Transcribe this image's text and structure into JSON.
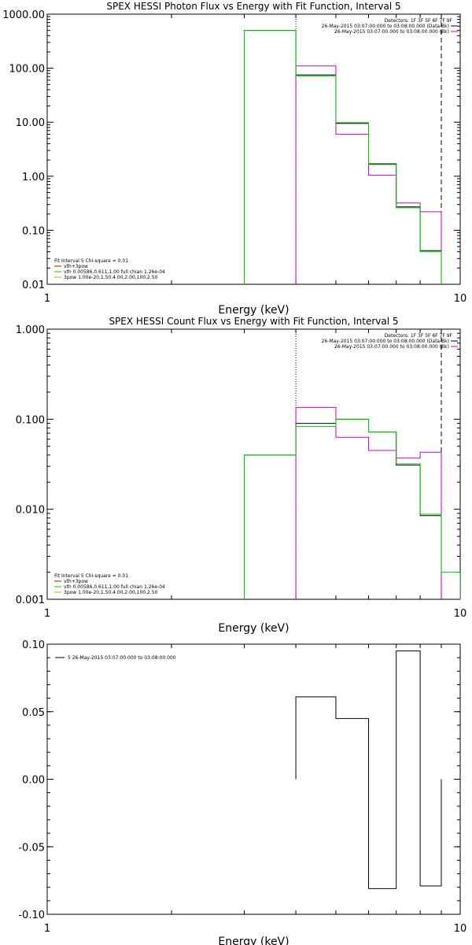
{
  "chart_data": [
    {
      "id": "photon",
      "type": "line",
      "title": "SPEX HESSI Photon Flux vs Energy with Fit Function, Interval 5",
      "xlabel": "Energy (keV)",
      "ylabel": "",
      "xscale": "log",
      "yscale": "log",
      "xlim": [
        1,
        10
      ],
      "ylim": [
        0.01,
        1000
      ],
      "x_ticks": [
        {
          "v": 1,
          "label": "1"
        },
        {
          "v": 10,
          "label": "10"
        }
      ],
      "y_ticks": [
        {
          "v": 0.01,
          "label": "0.01"
        },
        {
          "v": 0.1,
          "label": "0.10"
        },
        {
          "v": 1,
          "label": "1.00"
        },
        {
          "v": 10,
          "label": "10.00"
        },
        {
          "v": 100,
          "label": "100.00"
        },
        {
          "v": 1000,
          "label": "1000.00"
        }
      ],
      "grid": false,
      "vlines": [
        {
          "x": 4,
          "style": "dotted"
        },
        {
          "x": 9,
          "style": "dashed"
        }
      ],
      "legend_tr_header": "Detectors: 1F 3F 5F 6F 7F 9F",
      "legend_tr": [
        {
          "text": "26-May-2015 03:07:00.000 to 03:08:00.000 (Data-Bk)",
          "color": "#000000"
        },
        {
          "text": "26-May-2015 03:07:00.000 to 03:08:00.000 (Bk)",
          "color": "#cc00cc"
        }
      ],
      "legend_bl_header": "Fit Interval 5   Chi-square = 0.01",
      "legend_bl": [
        {
          "text": "vth+3pow",
          "color": "#cc0000"
        },
        {
          "text": "vth 0.00586,0.611,1.00  full chian 1.26e-04",
          "color": "#00cc00"
        },
        {
          "text": "3pow 1.00e-20,1.50,4.00,2.00,100,2.50",
          "color": "#ccaa00"
        }
      ],
      "edges": [
        3,
        4,
        5,
        6,
        7,
        8,
        9
      ],
      "series": [
        {
          "key": "data",
          "color": "#000000",
          "values": [
            500,
            75,
            9.5,
            1.7,
            0.27,
            0.042
          ]
        },
        {
          "key": "bk",
          "color": "#cc00cc",
          "values": [
            null,
            110,
            6,
            1.05,
            0.32,
            0.22
          ]
        },
        {
          "key": "fit",
          "color": "#00cc00",
          "values": [
            500,
            72,
            9.8,
            1.65,
            0.26,
            0.04
          ]
        }
      ]
    },
    {
      "id": "count",
      "type": "line",
      "title": "SPEX HESSI Count Flux vs Energy with Fit Function, Interval 5",
      "xlabel": "Energy (keV)",
      "ylabel": "",
      "xscale": "log",
      "yscale": "log",
      "xlim": [
        1,
        10
      ],
      "ylim": [
        0.001,
        1
      ],
      "x_ticks": [
        {
          "v": 1,
          "label": "1"
        },
        {
          "v": 10,
          "label": "10"
        }
      ],
      "y_ticks": [
        {
          "v": 0.001,
          "label": "0.001"
        },
        {
          "v": 0.01,
          "label": "0.010"
        },
        {
          "v": 0.1,
          "label": "0.100"
        },
        {
          "v": 1,
          "label": "1.000"
        }
      ],
      "grid": false,
      "vlines": [
        {
          "x": 4,
          "style": "dotted"
        },
        {
          "x": 9,
          "style": "dashed"
        }
      ],
      "legend_tr_header": "Detectors: 1F 3F 5F 6F 7F 9F",
      "legend_tr": [
        {
          "text": "26-May-2015 03:07:00.000 to 03:08:00.000 (Data-Bk)",
          "color": "#000000"
        },
        {
          "text": "26-May-2015 03:07:00.000 to 03:08:00.000 (Bk)",
          "color": "#cc00cc"
        }
      ],
      "legend_bl_header": "Fit Interval 5   Chi-square = 0.01",
      "legend_bl": [
        {
          "text": "vth+3pow",
          "color": "#cc0000"
        },
        {
          "text": "vth 0.00586,0.611,1.00  full chian 1.26e-04",
          "color": "#00cc00"
        },
        {
          "text": "3pow 1.00e-20,1.50,4.00,2.00,100,2.50",
          "color": "#ccaa00"
        }
      ],
      "edges": [
        3,
        4,
        5,
        6,
        7,
        8,
        9,
        10
      ],
      "series": [
        {
          "key": "data",
          "color": "#000000",
          "values": [
            0.04,
            0.09,
            0.1,
            0.072,
            0.031,
            0.0085,
            null
          ]
        },
        {
          "key": "bk",
          "color": "#cc00cc",
          "values": [
            null,
            0.135,
            0.063,
            0.045,
            0.037,
            0.043,
            null
          ]
        },
        {
          "key": "fit",
          "color": "#00cc00",
          "values": [
            0.04,
            0.083,
            0.1,
            0.072,
            0.032,
            0.0088,
            0.002
          ]
        }
      ]
    },
    {
      "id": "resid",
      "type": "line",
      "title": "",
      "xlabel": "Energy (keV)",
      "ylabel": "",
      "xscale": "log",
      "yscale": "linear",
      "xlim": [
        1,
        10
      ],
      "ylim": [
        -0.1,
        0.1
      ],
      "x_ticks": [
        {
          "v": 1,
          "label": "1"
        },
        {
          "v": 10,
          "label": "10"
        }
      ],
      "y_ticks": [
        {
          "v": -0.1,
          "label": "-0.10"
        },
        {
          "v": -0.05,
          "label": "-0.05"
        },
        {
          "v": 0,
          "label": "0.00"
        },
        {
          "v": 0.05,
          "label": "0.05"
        },
        {
          "v": 0.1,
          "label": "0.10"
        }
      ],
      "grid": false,
      "vlines": [],
      "legend_tl": [
        {
          "text": "5  26-May-2015 03:07:00.000 to 03:08:00.000",
          "color": "#000000"
        }
      ],
      "edges": [
        4,
        5,
        6,
        7,
        8,
        9
      ],
      "series": [
        {
          "key": "resid",
          "color": "#000000",
          "values": [
            0.061,
            0.045,
            -0.081,
            0.095,
            -0.079
          ]
        }
      ]
    }
  ]
}
